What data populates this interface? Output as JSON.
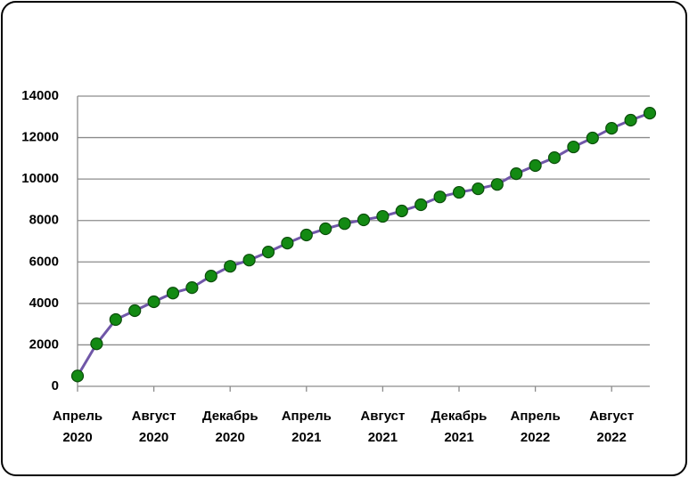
{
  "chart_data": {
    "type": "line",
    "categories": [
      "Апрель 2020",
      null,
      null,
      null,
      "Август 2020",
      null,
      null,
      null,
      "Декабрь 2020",
      null,
      null,
      null,
      "Апрель 2021",
      null,
      null,
      null,
      "Август 2021",
      null,
      null,
      null,
      "Декабрь 2021",
      null,
      null,
      null,
      "Апрель 2022",
      null,
      null,
      null,
      "Август 2022",
      null,
      null
    ],
    "series": [
      {
        "color": "#7057a8",
        "marker_color": "#138a13",
        "values": [
          500,
          2050,
          3220,
          3650,
          4080,
          4500,
          4760,
          5320,
          5790,
          6090,
          6480,
          6910,
          7300,
          7600,
          7850,
          8030,
          8200,
          8460,
          8760,
          9140,
          9360,
          9530,
          9740,
          10260,
          10650,
          11030,
          11550,
          11980,
          12450,
          12840,
          13180
        ]
      }
    ],
    "ylim": [
      0,
      14000
    ],
    "yticks": [
      0,
      2000,
      4000,
      6000,
      8000,
      10000,
      12000,
      14000
    ],
    "grid": true
  }
}
